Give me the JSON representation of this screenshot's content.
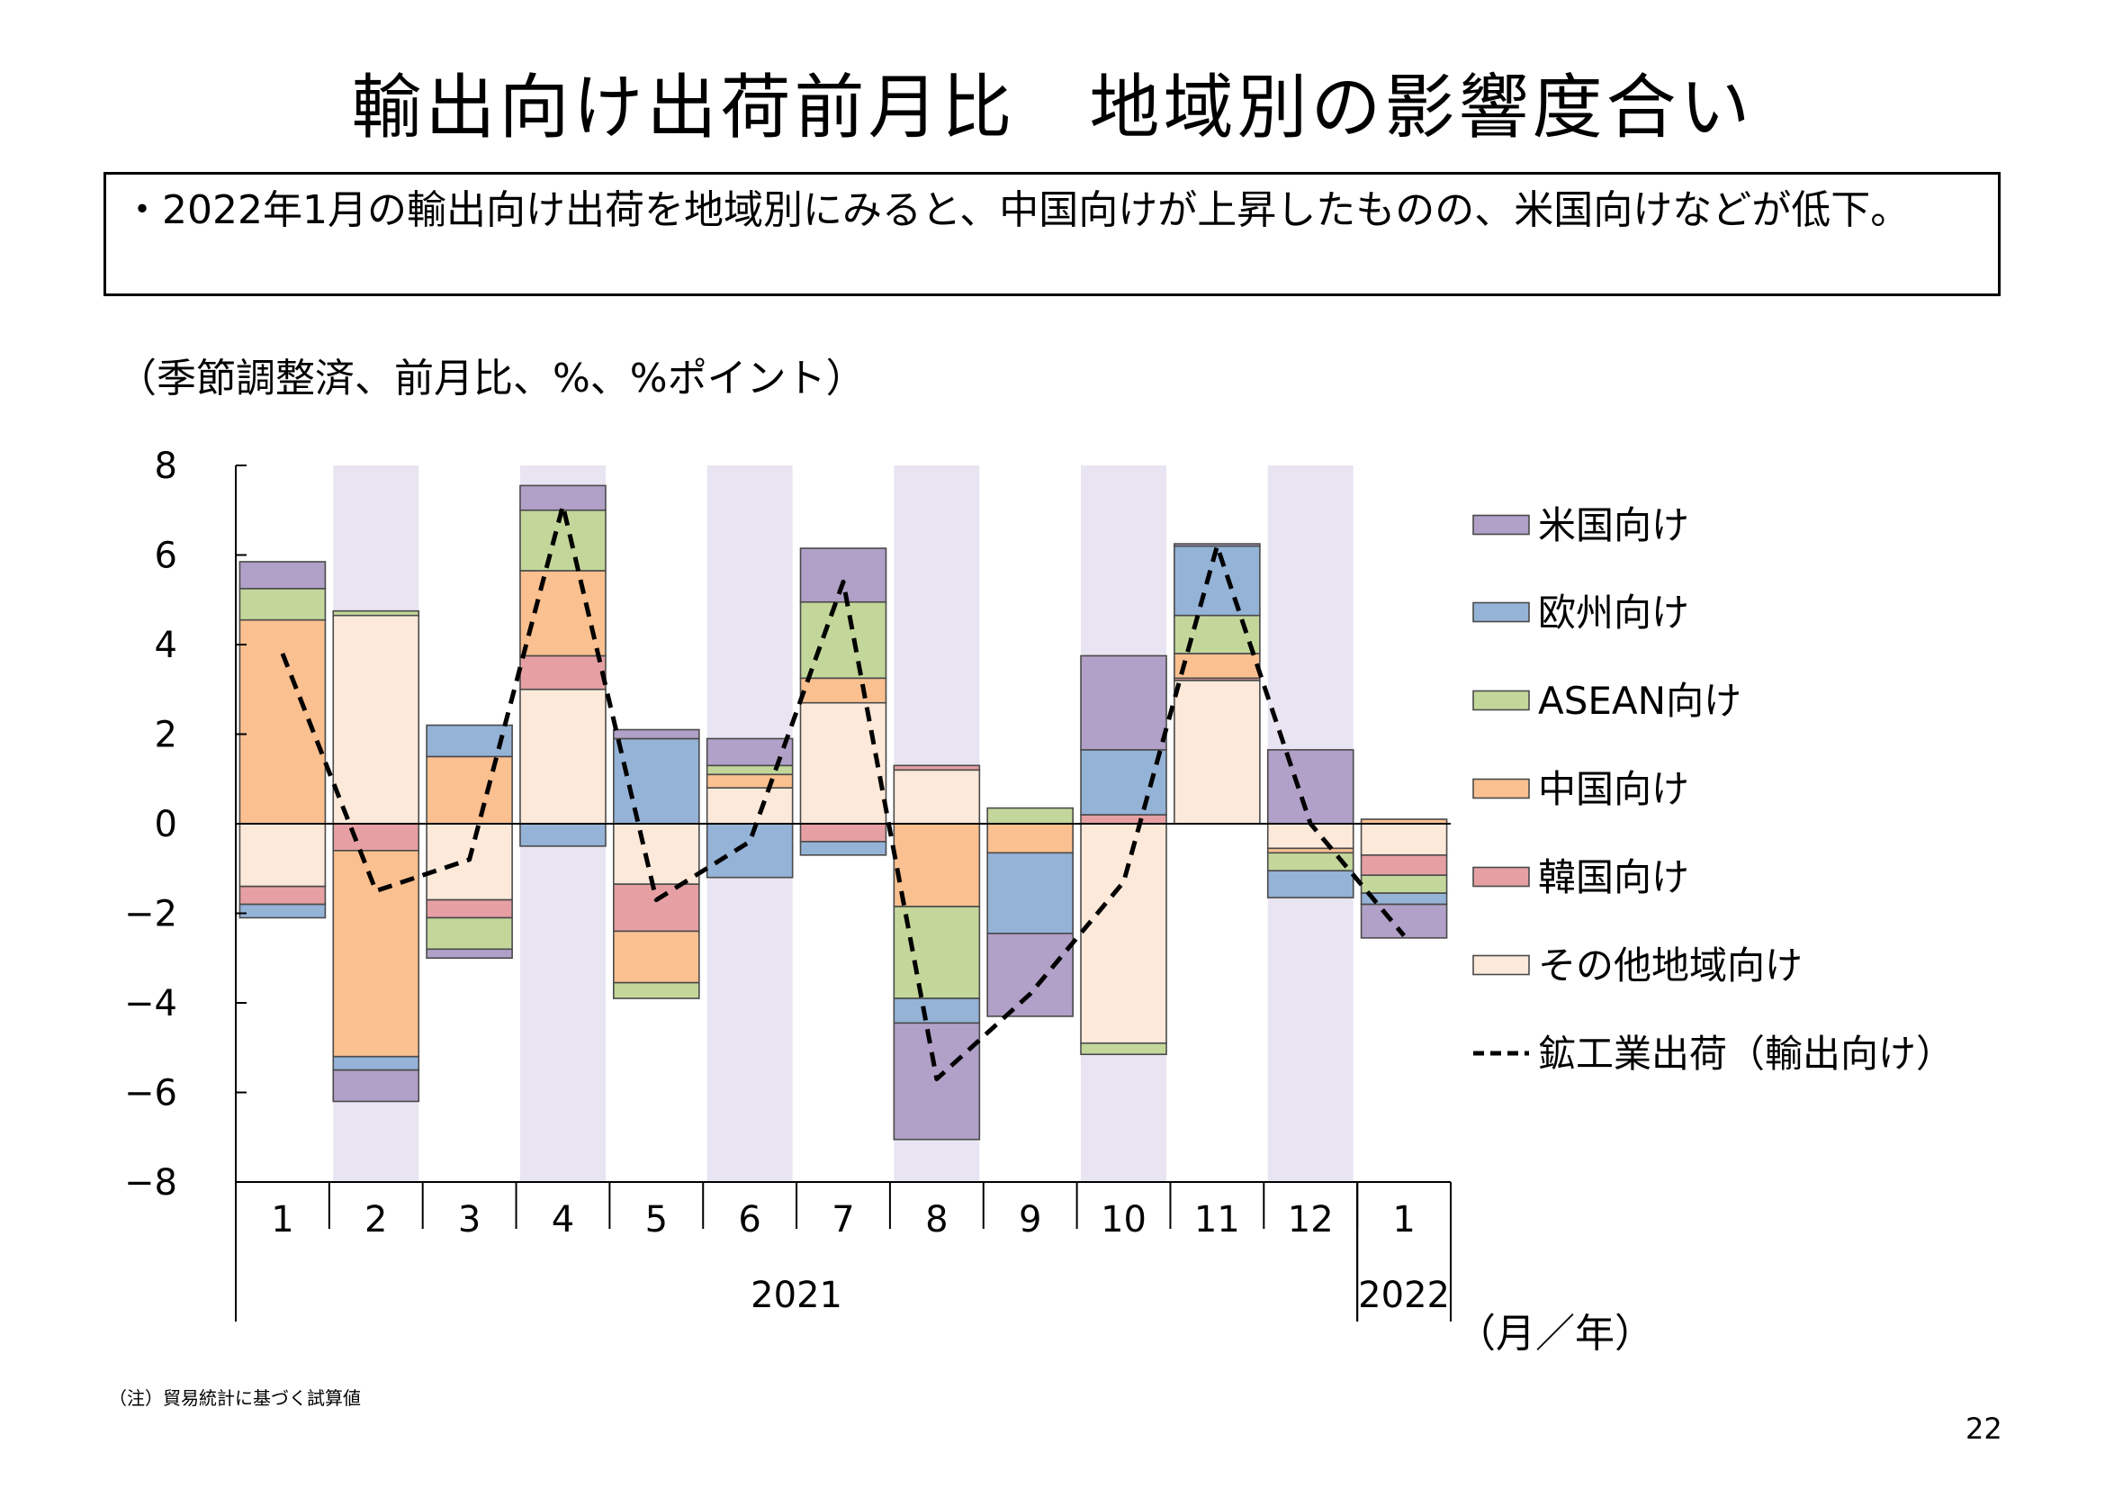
{
  "title": "輸出向け出荷前月比　地域別の影響度合い",
  "summary": "・2022年1月の輸出向け出荷を地域別にみると、中国向けが上昇したものの、米国向けなどが低下。",
  "unit_note": "（季節調整済、前月比、%、%ポイント）",
  "axis_unit": "（月／年）",
  "footnote": "（注）貿易統計に基づく試算値",
  "page_number": "22",
  "colors": {
    "us": "#b1a0c7",
    "eu": "#95b3d7",
    "asean": "#c4d79b",
    "china": "#fac090",
    "korea": "#e6a0a3",
    "other": "#fde9d9",
    "shade": "#e8e4f2",
    "border": "#4a4a4a"
  },
  "chart_data": {
    "type": "bar",
    "stacked": true,
    "categories": [
      "1",
      "2",
      "3",
      "4",
      "5",
      "6",
      "7",
      "8",
      "9",
      "10",
      "11",
      "12",
      "1"
    ],
    "year_labels": [
      "2021",
      "2022"
    ],
    "year_spans": [
      [
        0,
        11
      ],
      [
        12,
        12
      ]
    ],
    "shaded_categories": [
      1,
      3,
      5,
      7,
      9,
      11
    ],
    "ylim": [
      -8,
      8
    ],
    "yticks": [
      8,
      6,
      4,
      2,
      0,
      -2,
      -4,
      -6,
      -8
    ],
    "ytick_labels": [
      "8",
      "6",
      "4",
      "2",
      "0",
      "−2",
      "−4",
      "−6",
      "−8"
    ],
    "legend_position": "right",
    "series": [
      {
        "name": "その他地域向け",
        "key": "other",
        "values": [
          -1.4,
          4.65,
          -1.7,
          3.0,
          -1.35,
          0.8,
          2.7,
          1.2,
          0.0,
          -4.9,
          3.2,
          -0.55,
          -0.7
        ]
      },
      {
        "name": "韓国向け",
        "key": "korea",
        "values": [
          -0.4,
          -0.6,
          -0.4,
          0.75,
          -1.05,
          0.0,
          -0.4,
          0.1,
          0.0,
          0.2,
          0.05,
          0.0,
          -0.45
        ]
      },
      {
        "name": "中国向け",
        "key": "china",
        "values": [
          4.55,
          -4.6,
          1.5,
          1.9,
          -1.15,
          0.3,
          0.55,
          -1.85,
          -0.65,
          0.0,
          0.55,
          -0.1,
          0.1
        ]
      },
      {
        "name": "ASEAN向け",
        "key": "asean",
        "values": [
          0.7,
          0.1,
          -0.7,
          1.35,
          -0.35,
          0.2,
          1.7,
          -2.05,
          0.35,
          -0.25,
          0.85,
          -0.4,
          -0.4
        ]
      },
      {
        "name": "欧州向け",
        "key": "eu",
        "values": [
          -0.3,
          -0.3,
          0.7,
          -0.5,
          1.9,
          -1.2,
          -0.3,
          -0.55,
          -1.8,
          1.45,
          1.55,
          -0.6,
          -0.25
        ]
      },
      {
        "name": "米国向け",
        "key": "us",
        "values": [
          0.6,
          -0.7,
          -0.2,
          0.55,
          0.2,
          0.6,
          1.2,
          -2.6,
          -1.85,
          2.1,
          0.05,
          1.65,
          -0.75
        ]
      }
    ],
    "line": {
      "name": "鉱工業出荷（輸出向け）",
      "values": [
        3.8,
        -1.5,
        -0.8,
        7.1,
        -1.7,
        -0.4,
        5.4,
        -5.7,
        -3.8,
        -1.3,
        6.2,
        0.0,
        -2.5
      ]
    },
    "legend_order": [
      "us",
      "eu",
      "asean",
      "china",
      "korea",
      "other",
      "line"
    ],
    "legend_labels": {
      "us": "米国向け",
      "eu": "欧州向け",
      "asean": "ASEAN向け",
      "china": "中国向け",
      "korea": "韓国向け",
      "other": "その他地域向け",
      "line": "鉱工業出荷（輸出向け）"
    }
  }
}
